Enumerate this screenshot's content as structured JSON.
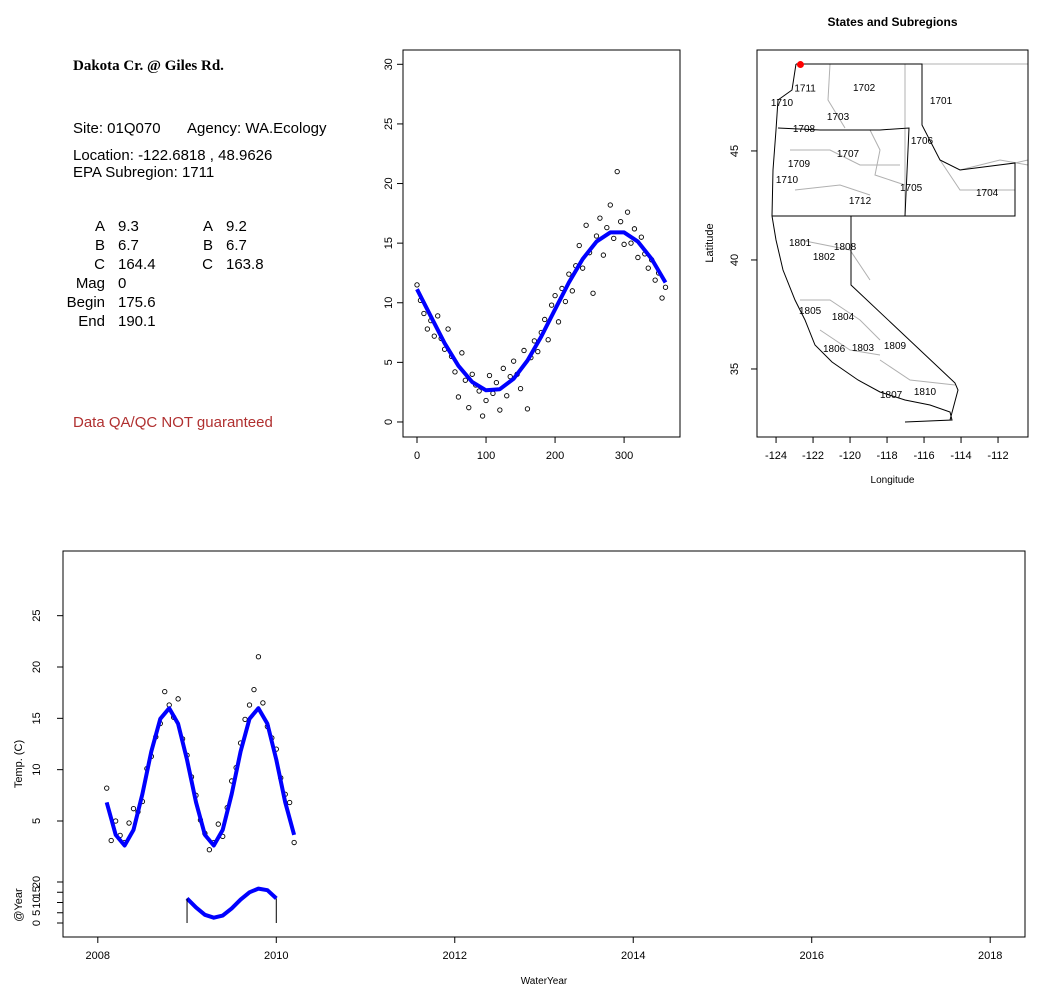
{
  "text_panel": {
    "title": "Dakota Cr. @ Giles Rd.",
    "site": "Site: 01Q070",
    "agency": "Agency: WA.Ecology",
    "location_label": "Location:",
    "separator": ",",
    "subregion": "EPA Subregion: 1711",
    "params": [
      {
        "label": "A",
        "fit1": 9.3,
        "label2": "A",
        "fit2": 9.2
      },
      {
        "label": "B",
        "fit1": 6.7,
        "label2": "B",
        "fit2": 6.7
      },
      {
        "label": "C",
        "fit1": 164.4,
        "label2": "C",
        "fit2": 163.8
      },
      {
        "label": "Mag",
        "fit1": 0
      },
      {
        "label": "Begin",
        "fit1": 175.6
      },
      {
        "label": "End",
        "fit1": 190.1
      }
    ],
    "disclaimer": "Data QA/QC NOT guaranteed"
  },
  "chart_data": [
    {
      "type": "scatter",
      "point_color": "#000000",
      "xlim": [
        -20.3,
        381
      ],
      "ylim": [
        -1.26,
        31.2
      ],
      "xticks": [
        0,
        100,
        200,
        300
      ],
      "yticks": [
        0,
        5,
        10,
        15,
        20,
        25,
        30
      ],
      "x": [
        0,
        5,
        10,
        15,
        20,
        25,
        30,
        35,
        40,
        45,
        50,
        55,
        60,
        65,
        70,
        75,
        80,
        85,
        90,
        95,
        100,
        105,
        110,
        115,
        120,
        125,
        130,
        135,
        140,
        145,
        150,
        155,
        160,
        165,
        170,
        175,
        180,
        185,
        190,
        195,
        200,
        205,
        210,
        215,
        220,
        225,
        230,
        235,
        240,
        245,
        250,
        255,
        260,
        265,
        270,
        275,
        280,
        285,
        290,
        295,
        300,
        305,
        310,
        315,
        320,
        325,
        330,
        335,
        340,
        345,
        350,
        355,
        360
      ],
      "y": [
        11.5,
        10.2,
        9.1,
        7.8,
        8.5,
        7.2,
        8.9,
        7.0,
        6.1,
        7.8,
        5.5,
        4.2,
        2.1,
        5.8,
        3.5,
        1.2,
        4.0,
        3.1,
        2.6,
        0.5,
        1.8,
        3.9,
        2.4,
        3.3,
        1.0,
        4.5,
        2.2,
        3.8,
        5.1,
        4.0,
        2.8,
        6.0,
        1.1,
        5.4,
        6.8,
        5.9,
        7.5,
        8.6,
        6.9,
        9.8,
        10.6,
        8.4,
        11.2,
        10.1,
        12.4,
        11.0,
        13.1,
        14.8,
        12.9,
        16.5,
        14.2,
        10.8,
        15.6,
        17.1,
        14.0,
        16.3,
        18.2,
        15.4,
        21.0,
        16.8,
        14.9,
        17.6,
        15.0,
        16.2,
        13.8,
        15.5,
        14.1,
        12.9,
        13.6,
        11.9,
        12.5,
        10.4,
        11.3
      ],
      "fit": {
        "color": "#0000ff",
        "x": [
          0,
          20,
          40,
          60,
          80,
          100,
          120,
          140,
          160,
          180,
          200,
          220,
          240,
          260,
          280,
          300,
          320,
          340,
          360
        ],
        "y": [
          11.14,
          8.86,
          6.61,
          4.71,
          3.35,
          2.66,
          2.75,
          3.62,
          5.16,
          7.17,
          9.45,
          11.7,
          13.67,
          15.13,
          15.9,
          15.9,
          15.13,
          13.67,
          11.7
        ]
      }
    },
    {
      "type": "map",
      "title": "States and Subregions",
      "x_label": "Longitude",
      "y_label": "Latitude",
      "xlim": [
        -125.03,
        -110.38
      ],
      "ylim": [
        31.88,
        49.63
      ],
      "xticks": [
        -124,
        -122,
        -120,
        -118,
        -116,
        -114,
        -112
      ],
      "yticks": [
        35,
        40,
        45
      ],
      "site": {
        "x": -122.6818,
        "y": 48.9626,
        "color": "#ff0000"
      },
      "regions": [
        {
          "label": "1711",
          "x": -122.43,
          "y": 47.9
        },
        {
          "label": "1702",
          "x": -119.24,
          "y": 47.94
        },
        {
          "label": "1701",
          "x": -115.08,
          "y": 47.34
        },
        {
          "label": "1710",
          "x": -123.68,
          "y": 47.25
        },
        {
          "label": "1703",
          "x": -120.65,
          "y": 46.6
        },
        {
          "label": "1708",
          "x": -122.49,
          "y": 46.06
        },
        {
          "label": "1706",
          "x": -116.11,
          "y": 45.5
        },
        {
          "label": "1707",
          "x": -120.11,
          "y": 44.9
        },
        {
          "label": "1709",
          "x": -122.76,
          "y": 44.45
        },
        {
          "label": "1710",
          "x": -123.41,
          "y": 43.72
        },
        {
          "label": "1705",
          "x": -116.7,
          "y": 43.35
        },
        {
          "label": "1704",
          "x": -112.59,
          "y": 43.12
        },
        {
          "label": "1712",
          "x": -119.46,
          "y": 42.75
        },
        {
          "label": "1801",
          "x": -122.7,
          "y": 40.83
        },
        {
          "label": "1808",
          "x": -120.27,
          "y": 40.64
        },
        {
          "label": "1802",
          "x": -121.41,
          "y": 40.18
        },
        {
          "label": "1805",
          "x": -122.16,
          "y": 37.7
        },
        {
          "label": "1804",
          "x": -120.38,
          "y": 37.43
        },
        {
          "label": "1806",
          "x": -120.86,
          "y": 35.96
        },
        {
          "label": "1803",
          "x": -119.3,
          "y": 36.01
        },
        {
          "label": "1809",
          "x": -117.57,
          "y": 36.1
        },
        {
          "label": "1807",
          "x": -117.78,
          "y": 33.85
        },
        {
          "label": "1810",
          "x": -115.95,
          "y": 33.99
        }
      ]
    },
    {
      "type": "timeseries",
      "x_label": "WaterYear",
      "y_label": "Temp. (C)",
      "y2_label": "@Year",
      "point_color": "#000000",
      "xlim": [
        2007.61,
        2018.39
      ],
      "ylim": [
        -6.3,
        31.3
      ],
      "xticks": [
        2008,
        2010,
        2012,
        2014,
        2016,
        2018
      ],
      "yticks": [
        5,
        10,
        15,
        20,
        25
      ],
      "y2lim": [
        -6.83,
        181.5
      ],
      "y2ticks": [
        0,
        5,
        10,
        15,
        20
      ],
      "x": [
        2008.1,
        2008.15,
        2008.2,
        2008.25,
        2008.3,
        2008.35,
        2008.4,
        2008.45,
        2008.5,
        2008.55,
        2008.6,
        2008.65,
        2008.7,
        2008.75,
        2008.8,
        2008.85,
        2008.9,
        2008.95,
        2009.0,
        2009.05,
        2009.1,
        2009.15,
        2009.2,
        2009.25,
        2009.3,
        2009.35,
        2009.4,
        2009.45,
        2009.5,
        2009.55,
        2009.6,
        2009.65,
        2009.7,
        2009.75,
        2009.8,
        2009.85,
        2009.9,
        2009.95,
        2010.0,
        2010.05,
        2010.1,
        2010.15,
        2010.2
      ],
      "y": [
        8.2,
        3.1,
        5.0,
        3.6,
        2.9,
        4.8,
        6.2,
        5.9,
        6.9,
        10.1,
        11.3,
        13.2,
        14.5,
        17.6,
        16.3,
        15.1,
        16.9,
        13.0,
        11.4,
        9.3,
        7.5,
        5.1,
        3.8,
        2.2,
        2.9,
        4.7,
        3.5,
        6.3,
        8.9,
        10.2,
        12.6,
        14.9,
        16.3,
        17.8,
        21.0,
        16.5,
        14.2,
        13.1,
        12.0,
        9.2,
        7.6,
        6.8,
        2.9
      ],
      "fit": {
        "color": "#0000ff",
        "x": [
          2008.1,
          2008.2,
          2008.3,
          2008.4,
          2008.5,
          2008.6,
          2008.7,
          2008.8,
          2008.9,
          2009.0,
          2009.1,
          2009.2,
          2009.3,
          2009.4,
          2009.5,
          2009.6,
          2009.7,
          2009.8,
          2009.9,
          2010.0,
          2010.1,
          2010.2
        ],
        "y": [
          6.81,
          3.65,
          2.61,
          4.13,
          7.63,
          11.77,
          14.95,
          15.99,
          14.47,
          10.97,
          6.83,
          3.65,
          2.61,
          4.13,
          7.63,
          11.77,
          14.95,
          15.99,
          14.47,
          10.97,
          6.83,
          3.65
        ]
      },
      "year_curve": {
        "color": "#0000ff",
        "axis": "y2",
        "x": [
          2009.0,
          2009.1,
          2009.2,
          2009.3,
          2009.4,
          2009.5,
          2009.6,
          2009.7,
          2009.8,
          2009.9,
          2010.0
        ],
        "y": [
          12.0,
          7.6,
          4.0,
          2.6,
          3.6,
          7.1,
          11.4,
          15.0,
          16.8,
          16.0,
          12.0
        ]
      }
    }
  ]
}
